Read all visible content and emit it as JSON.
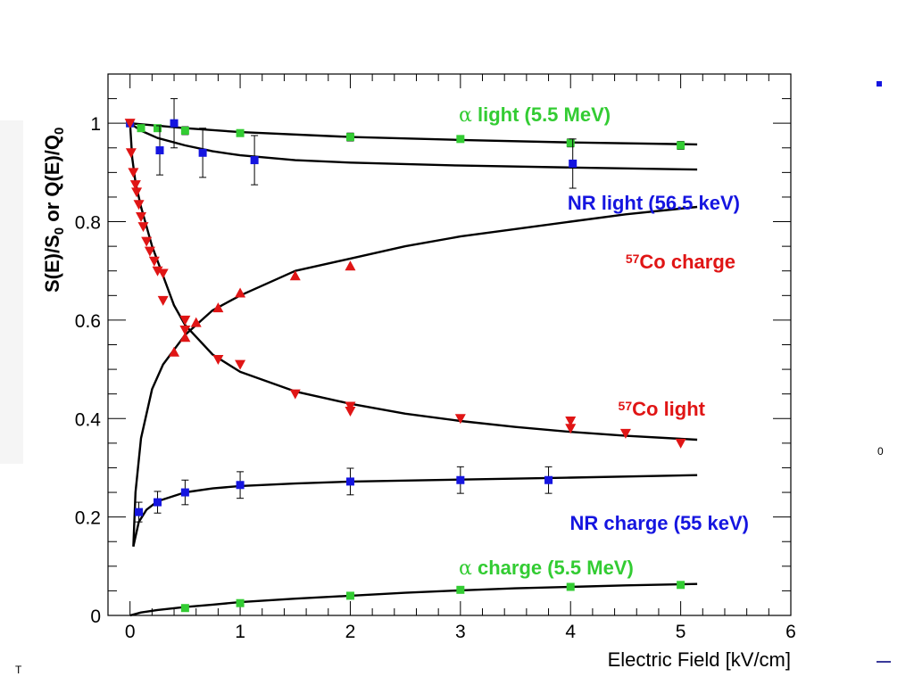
{
  "chart_data": {
    "type": "scatter",
    "xlabel": "Electric Field [kV/cm]",
    "ylabel": "S(E)/S_0 or Q(E)/Q_0",
    "xlim": [
      -0.2,
      6
    ],
    "ylim": [
      0,
      1.1
    ],
    "x_ticks": [
      "0",
      "1",
      "2",
      "3",
      "4",
      "5",
      "6"
    ],
    "y_ticks": [
      "0",
      "0.2",
      "0.4",
      "0.6",
      "0.8",
      "1"
    ],
    "grid": false,
    "series": [
      {
        "name": "α light (5.5 MeV)",
        "label_parts": [
          "α",
          " light (5.5 MeV)"
        ],
        "color": "#33cc33",
        "marker": "square",
        "points": [
          {
            "x": 0.0,
            "y": 1.0,
            "err": 0.006
          },
          {
            "x": 0.1,
            "y": 0.99,
            "err": 0.006
          },
          {
            "x": 0.25,
            "y": 0.99,
            "err": 0.006
          },
          {
            "x": 0.5,
            "y": 0.985,
            "err": 0.008
          },
          {
            "x": 1.0,
            "y": 0.98,
            "err": 0.006
          },
          {
            "x": 2.0,
            "y": 0.972,
            "err": 0.008
          },
          {
            "x": 3.0,
            "y": 0.968,
            "err": 0.006
          },
          {
            "x": 4.0,
            "y": 0.96,
            "err": 0.008
          },
          {
            "x": 5.0,
            "y": 0.955,
            "err": 0.008
          }
        ],
        "fit": [
          [
            0,
            1.0
          ],
          [
            0.5,
            0.99
          ],
          [
            1,
            0.982
          ],
          [
            2,
            0.972
          ],
          [
            3,
            0.966
          ],
          [
            4,
            0.961
          ],
          [
            5.15,
            0.957
          ]
        ]
      },
      {
        "name": "NR light (56.5 keV)",
        "label_parts": [
          "NR light (56.5 keV)"
        ],
        "color": "#1515e0",
        "marker": "square",
        "points": [
          {
            "x": 0.0,
            "y": 1.0,
            "err": 0.0
          },
          {
            "x": 0.27,
            "y": 0.945,
            "err": 0.05
          },
          {
            "x": 0.4,
            "y": 1.0,
            "err": 0.05
          },
          {
            "x": 0.66,
            "y": 0.94,
            "err": 0.05
          },
          {
            "x": 1.13,
            "y": 0.925,
            "err": 0.05
          },
          {
            "x": 4.02,
            "y": 0.918,
            "err": 0.05
          }
        ],
        "fit": [
          [
            0,
            1.0
          ],
          [
            0.1,
            0.985
          ],
          [
            0.25,
            0.97
          ],
          [
            0.5,
            0.955
          ],
          [
            0.75,
            0.943
          ],
          [
            1,
            0.935
          ],
          [
            1.5,
            0.925
          ],
          [
            2,
            0.92
          ],
          [
            3,
            0.914
          ],
          [
            4,
            0.91
          ],
          [
            5.15,
            0.906
          ]
        ]
      },
      {
        "name": "57Co charge",
        "label_parts": [
          "57",
          "Co charge"
        ],
        "color": "#e01515",
        "marker": "triangle-up",
        "points": [
          {
            "x": 0.4,
            "y": 0.535
          },
          {
            "x": 0.5,
            "y": 0.565
          },
          {
            "x": 0.6,
            "y": 0.595
          },
          {
            "x": 0.8,
            "y": 0.625
          },
          {
            "x": 1.0,
            "y": 0.655
          },
          {
            "x": 1.5,
            "y": 0.69
          },
          {
            "x": 2.0,
            "y": 0.71
          }
        ],
        "fit": [
          [
            0.03,
            0.14
          ],
          [
            0.05,
            0.25
          ],
          [
            0.1,
            0.36
          ],
          [
            0.2,
            0.46
          ],
          [
            0.3,
            0.51
          ],
          [
            0.5,
            0.57
          ],
          [
            0.75,
            0.62
          ],
          [
            1,
            0.65
          ],
          [
            1.5,
            0.7
          ],
          [
            2,
            0.725
          ],
          [
            2.5,
            0.75
          ],
          [
            3,
            0.77
          ],
          [
            3.5,
            0.785
          ],
          [
            4,
            0.8
          ],
          [
            4.5,
            0.815
          ],
          [
            5.15,
            0.83
          ]
        ]
      },
      {
        "name": "57Co light",
        "label_parts": [
          "57",
          "Co light"
        ],
        "color": "#e01515",
        "marker": "triangle-down",
        "points": [
          {
            "x": 0.0,
            "y": 1.0
          },
          {
            "x": 0.01,
            "y": 0.94
          },
          {
            "x": 0.03,
            "y": 0.9
          },
          {
            "x": 0.05,
            "y": 0.875
          },
          {
            "x": 0.06,
            "y": 0.86
          },
          {
            "x": 0.08,
            "y": 0.835
          },
          {
            "x": 0.1,
            "y": 0.81
          },
          {
            "x": 0.12,
            "y": 0.79
          },
          {
            "x": 0.15,
            "y": 0.76
          },
          {
            "x": 0.18,
            "y": 0.74
          },
          {
            "x": 0.22,
            "y": 0.72
          },
          {
            "x": 0.25,
            "y": 0.7
          },
          {
            "x": 0.3,
            "y": 0.695
          },
          {
            "x": 0.3,
            "y": 0.64
          },
          {
            "x": 0.5,
            "y": 0.6
          },
          {
            "x": 0.5,
            "y": 0.58
          },
          {
            "x": 0.8,
            "y": 0.52
          },
          {
            "x": 1.0,
            "y": 0.51
          },
          {
            "x": 1.5,
            "y": 0.45
          },
          {
            "x": 2.0,
            "y": 0.425
          },
          {
            "x": 2.0,
            "y": 0.415
          },
          {
            "x": 3.0,
            "y": 0.4
          },
          {
            "x": 4.0,
            "y": 0.395
          },
          {
            "x": 4.0,
            "y": 0.38
          },
          {
            "x": 4.5,
            "y": 0.37
          },
          {
            "x": 5.0,
            "y": 0.35
          }
        ],
        "fit": [
          [
            0,
            1.0
          ],
          [
            0.02,
            0.93
          ],
          [
            0.05,
            0.88
          ],
          [
            0.1,
            0.83
          ],
          [
            0.2,
            0.75
          ],
          [
            0.3,
            0.69
          ],
          [
            0.4,
            0.63
          ],
          [
            0.5,
            0.59
          ],
          [
            0.75,
            0.53
          ],
          [
            1,
            0.495
          ],
          [
            1.5,
            0.455
          ],
          [
            2,
            0.43
          ],
          [
            2.5,
            0.41
          ],
          [
            3,
            0.395
          ],
          [
            3.5,
            0.383
          ],
          [
            4,
            0.373
          ],
          [
            4.5,
            0.365
          ],
          [
            5.15,
            0.357
          ]
        ]
      },
      {
        "name": "NR charge (55 keV)",
        "label_parts": [
          "NR charge (55 keV)"
        ],
        "color": "#1515e0",
        "marker": "square",
        "points": [
          {
            "x": 0.08,
            "y": 0.21,
            "err": 0.02
          },
          {
            "x": 0.25,
            "y": 0.23,
            "err": 0.022
          },
          {
            "x": 0.5,
            "y": 0.25,
            "err": 0.025
          },
          {
            "x": 1.0,
            "y": 0.265,
            "err": 0.027
          },
          {
            "x": 2.0,
            "y": 0.272,
            "err": 0.027
          },
          {
            "x": 3.0,
            "y": 0.275,
            "err": 0.027
          },
          {
            "x": 3.8,
            "y": 0.275,
            "err": 0.027
          }
        ],
        "fit": [
          [
            0.03,
            0.14
          ],
          [
            0.05,
            0.16
          ],
          [
            0.08,
            0.19
          ],
          [
            0.15,
            0.215
          ],
          [
            0.25,
            0.232
          ],
          [
            0.5,
            0.25
          ],
          [
            0.75,
            0.258
          ],
          [
            1,
            0.263
          ],
          [
            1.5,
            0.268
          ],
          [
            2,
            0.272
          ],
          [
            3,
            0.276
          ],
          [
            4,
            0.28
          ],
          [
            5.15,
            0.285
          ]
        ]
      },
      {
        "name": "α charge (5.5 MeV)",
        "label_parts": [
          "α",
          " charge (5.5 MeV)"
        ],
        "color": "#33cc33",
        "marker": "square",
        "points": [
          {
            "x": 0.5,
            "y": 0.015,
            "err": 0.004
          },
          {
            "x": 1.0,
            "y": 0.025,
            "err": 0.004
          },
          {
            "x": 2.0,
            "y": 0.04,
            "err": 0.004
          },
          {
            "x": 3.0,
            "y": 0.052,
            "err": 0.004
          },
          {
            "x": 4.0,
            "y": 0.058,
            "err": 0.004
          },
          {
            "x": 5.0,
            "y": 0.062,
            "err": 0.004
          }
        ],
        "fit": [
          [
            0,
            0.0
          ],
          [
            0.1,
            0.006
          ],
          [
            0.25,
            0.011
          ],
          [
            0.5,
            0.017
          ],
          [
            0.75,
            0.022
          ],
          [
            1,
            0.027
          ],
          [
            1.5,
            0.034
          ],
          [
            2,
            0.04
          ],
          [
            2.5,
            0.046
          ],
          [
            3,
            0.051
          ],
          [
            3.5,
            0.055
          ],
          [
            4,
            0.058
          ],
          [
            4.5,
            0.061
          ],
          [
            5.15,
            0.064
          ]
        ]
      }
    ]
  },
  "stray_text": {
    "bottom_left": "T",
    "right_edge": "0"
  }
}
